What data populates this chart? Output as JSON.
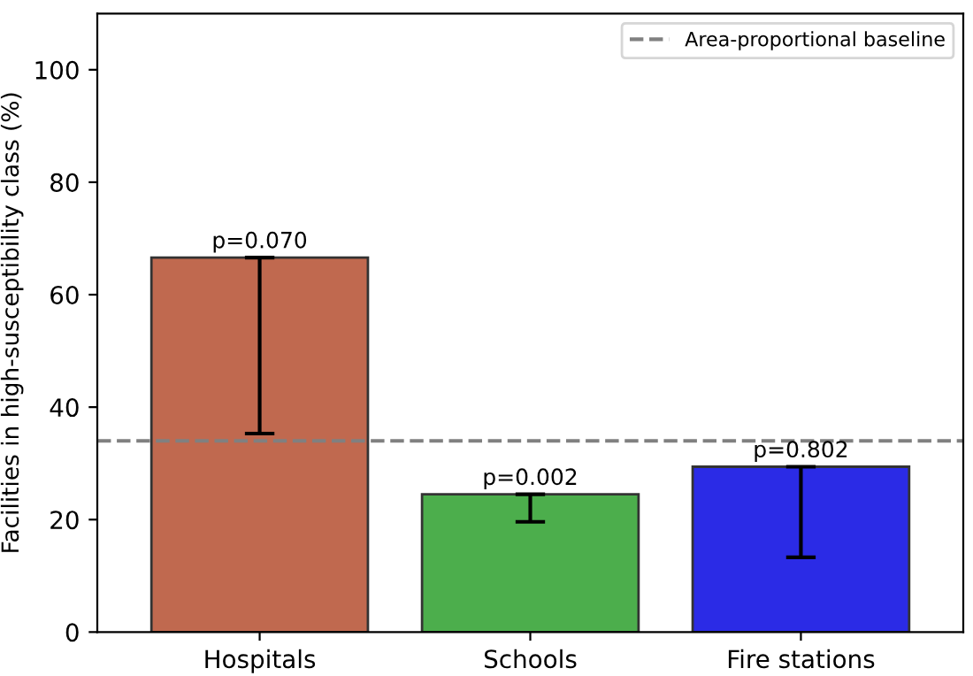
{
  "chart_data": {
    "type": "bar",
    "categories": [
      "Hospitals",
      "Schools",
      "Fire stations"
    ],
    "values": [
      66.6,
      24.5,
      29.4
    ],
    "colors": [
      "#c0694f",
      "#4cae4c",
      "#2b2be6"
    ],
    "errors": [
      [
        35.3,
        66.6
      ],
      [
        19.6,
        24.5
      ],
      [
        13.3,
        29.4
      ]
    ],
    "ylabel": "Facilities in high-susceptibility class (%)",
    "ylim": [
      0,
      110
    ],
    "yticks": [
      0,
      20,
      40,
      60,
      80,
      100
    ],
    "ref_lines": [
      {
        "axis": "y",
        "value": 34.0,
        "label": "Area-proportional baseline",
        "color": "#808080",
        "line_style": "dashed"
      }
    ],
    "annotations": [
      {
        "text": "p=0.070",
        "x": "Hospitals",
        "y": 66.6
      },
      {
        "text": "p=0.002",
        "x": "Schools",
        "y": 24.5
      },
      {
        "text": "p=0.802",
        "x": "Fire stations",
        "y": 29.4
      }
    ],
    "legend": "top right",
    "grid": false
  }
}
